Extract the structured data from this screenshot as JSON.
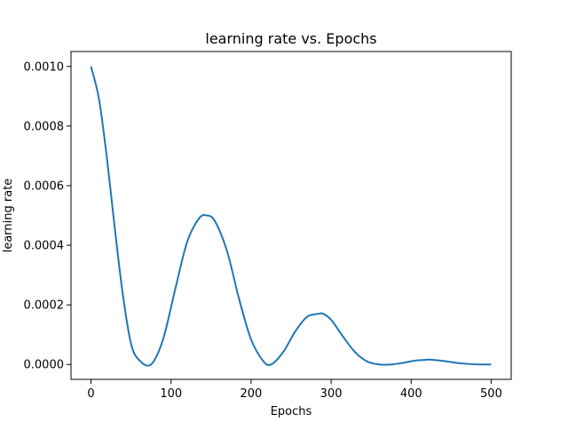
{
  "chart_data": {
    "type": "line",
    "title": "learning rate vs. Epochs",
    "xlabel": "Epochs",
    "ylabel": "learning rate",
    "xlim": [
      -25,
      525
    ],
    "ylim": [
      -5e-05,
      0.00105
    ],
    "xticks": [
      0,
      100,
      200,
      300,
      400,
      500
    ],
    "xtick_labels": [
      "0",
      "100",
      "200",
      "300",
      "400",
      "500"
    ],
    "yticks": [
      0,
      0.0002,
      0.0004,
      0.0006,
      0.0008,
      0.001
    ],
    "ytick_labels": [
      "0.0000",
      "0.0002",
      "0.0004",
      "0.0006",
      "0.0008",
      "0.0010"
    ],
    "grid": false,
    "series": [
      {
        "color": "#1f77b4",
        "x": [
          0,
          10,
          20,
          30,
          40,
          50,
          60,
          75,
          90,
          105,
          120,
          135,
          145,
          155,
          170,
          185,
          200,
          215,
          225,
          240,
          255,
          270,
          285,
          290,
          300,
          315,
          330,
          345,
          360,
          375,
          390,
          405,
          420,
          425,
          440,
          455,
          470,
          485,
          500
        ],
        "y": [
          0.001,
          0.00089,
          0.00069,
          0.00045,
          0.00023,
          7e-05,
          1.5e-05,
          0.0,
          8.4e-05,
          0.00025,
          0.00041,
          0.00049,
          0.0005,
          0.00048,
          0.00038,
          0.00022,
          8.4e-05,
          1.2e-05,
          0.0,
          4.1e-05,
          0.00011,
          0.00016,
          0.00017,
          0.00017,
          0.00015,
          9.3e-05,
          4.1e-05,
          1e-05,
          0.0,
          0.0,
          5.5e-06,
          1.3e-05,
          1.6e-05,
          1.6e-05,
          1.2e-05,
          6e-06,
          2e-06,
          0.0,
          0.0
        ]
      }
    ]
  }
}
